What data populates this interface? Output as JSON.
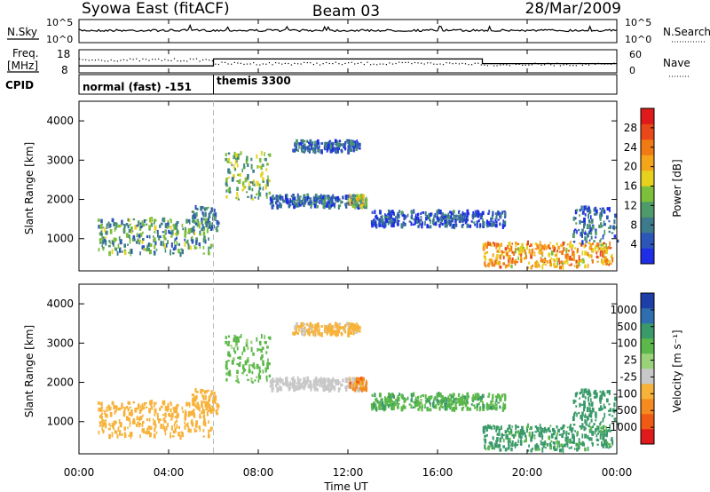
{
  "header": {
    "site": "Syowa East (fitACF)",
    "beam": "Beam 03",
    "date": "28/Mar/2009"
  },
  "strip": {
    "nsky_label": "N.Sky",
    "nsky_top_tick": "10^5",
    "nsky_bottom_tick": "10^0",
    "nsearch_label": "N.Search",
    "nsearch_top_tick": "10^5",
    "nsearch_bottom_tick": "10^0",
    "freq_label_1": "Freq.",
    "freq_label_2": "[MHz]",
    "freq_top_tick": "18",
    "freq_bottom_tick": "8",
    "nave_label": "Nave",
    "nave_top_tick": "60",
    "nave_bottom_tick": "0",
    "cpid_label": "CPID",
    "cpid_programs": [
      "normal (fast) -151",
      "themis 3300"
    ]
  },
  "panels": {
    "power": {
      "ylabel": "Slant Range [km]",
      "cbar_label": "Power [dB]",
      "cbar_ticks": [
        "28",
        "24",
        "20",
        "16",
        "12",
        "8",
        "4"
      ]
    },
    "velocity": {
      "ylabel": "Slant Range [km]",
      "cbar_label": "Velocity [m s⁻¹]",
      "cbar_ticks": [
        "1000",
        "500",
        "100",
        "25",
        "-25",
        "-100",
        "-500",
        "-1000"
      ]
    }
  },
  "xaxis": {
    "label": "Time UT",
    "ticks": [
      "00:00",
      "04:00",
      "08:00",
      "12:00",
      "16:00",
      "20:00",
      "00:00"
    ]
  },
  "colors": {
    "power_scale": [
      "#1f2ee6",
      "#2c56b8",
      "#3d7a8c",
      "#4f9a6a",
      "#7bbf3a",
      "#e6d21e",
      "#f5a51a",
      "#f07a14",
      "#e8481a",
      "#e01a1a"
    ],
    "velocity_scale": [
      "#e01a1a",
      "#f05a14",
      "#f58a1e",
      "#f7b23a",
      "#c8c8c8",
      "#9ad27a",
      "#5cb84a",
      "#3a9a6a",
      "#2f6fb0",
      "#1f3fa8"
    ]
  },
  "chart_data": {
    "type": "heatmap",
    "x_range_hours": [
      0,
      24
    ],
    "y_range_km": [
      180,
      4500
    ],
    "y_ticks_km": [
      1000,
      2000,
      3000,
      4000
    ],
    "frequency_mhz": [
      {
        "from_hour": 0,
        "to_hour": 6,
        "value": 11
      },
      {
        "from_hour": 6,
        "to_hour": 18,
        "value": 14
      },
      {
        "from_hour": 18,
        "to_hour": 24,
        "value": 12
      }
    ],
    "cpid_boundaries_hours": [
      6
    ],
    "echo_regions": [
      {
        "t0": 0.8,
        "t1": 5.9,
        "r0": 600,
        "r1": 1500,
        "power_db": 12,
        "velocity": -300
      },
      {
        "t0": 5.0,
        "t1": 6.2,
        "r0": 1200,
        "r1": 1800,
        "power_db": 10,
        "velocity": -200
      },
      {
        "t0": 6.5,
        "t1": 8.5,
        "r0": 2000,
        "r1": 3200,
        "power_db": 14,
        "velocity": 50
      },
      {
        "t0": 8.5,
        "t1": 12.8,
        "r0": 1800,
        "r1": 2100,
        "power_db": 8,
        "velocity": -60
      },
      {
        "t0": 9.5,
        "t1": 12.5,
        "r0": 3200,
        "r1": 3500,
        "power_db": 8,
        "velocity": -150
      },
      {
        "t0": 12.0,
        "t1": 12.8,
        "r0": 1800,
        "r1": 2100,
        "power_db": 18,
        "velocity": -700
      },
      {
        "t0": 13.0,
        "t1": 19.0,
        "r0": 1300,
        "r1": 1700,
        "power_db": 6,
        "velocity": 80
      },
      {
        "t0": 18.0,
        "t1": 23.8,
        "r0": 250,
        "r1": 900,
        "power_db": 22,
        "velocity": 150
      },
      {
        "t0": 22.0,
        "t1": 24.0,
        "r0": 900,
        "r1": 1800,
        "power_db": 8,
        "velocity": 300
      }
    ]
  }
}
